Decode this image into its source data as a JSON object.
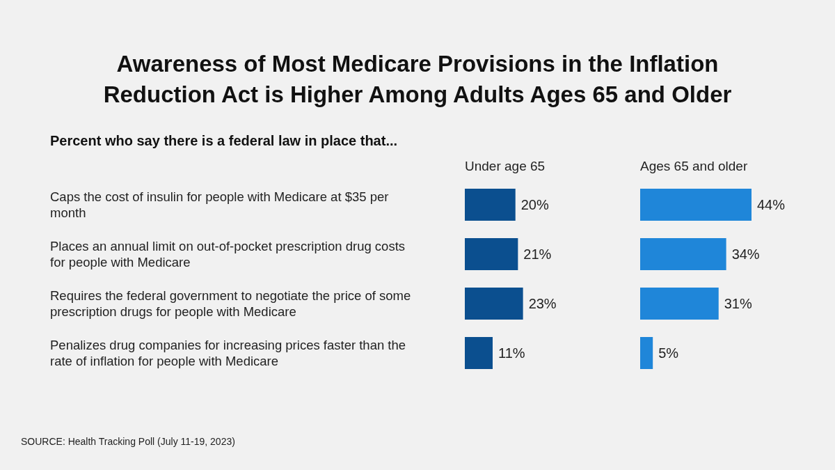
{
  "chart_data": [
    {
      "type": "bar",
      "orientation": "horizontal",
      "title": "Awareness of Most Medicare Provisions in the Inflation Reduction Act is Higher Among Adults Ages 65 and Older",
      "subtitle": "Percent who say there is a federal law in place that...",
      "categories": [
        "Caps the cost of insulin for people with Medicare at $35 per month",
        "Places an annual limit on out-of-pocket prescription drug costs for people with Medicare",
        "Requires the federal government to negotiate the price of some prescription drugs for people with Medicare",
        "Penalizes drug companies for increasing prices faster than the rate of inflation for people with Medicare"
      ],
      "series": [
        {
          "name": "Under age 65",
          "color": "#0b4f8f",
          "values": [
            20,
            21,
            23,
            11
          ],
          "value_labels": [
            "20%",
            "21%",
            "23%",
            "11%"
          ]
        }
      ],
      "annotations": [
        "SOURCE: Health Tracking Poll (July 11-19, 2023)"
      ]
    },
    {
      "type": "bar",
      "orientation": "horizontal",
      "categories": [
        null,
        null,
        null,
        null
      ],
      "series": [
        {
          "name": "Ages 65 and older",
          "color": "#1f86d9",
          "values": [
            44,
            34,
            31,
            5
          ],
          "value_labels": [
            "44%",
            "34%",
            "31%",
            "5%"
          ]
        }
      ]
    }
  ]
}
